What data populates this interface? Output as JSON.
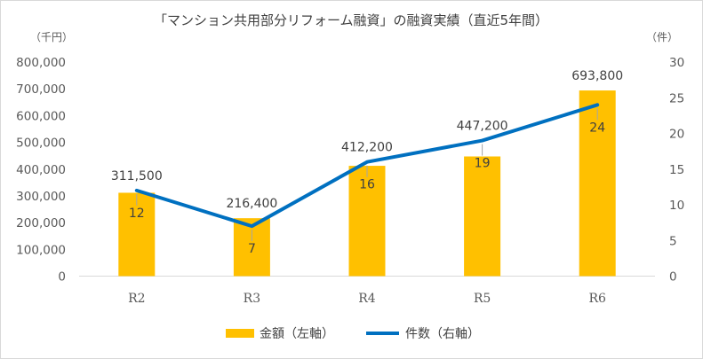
{
  "chart_data": {
    "type": "bar",
    "title": "「マンション共用部分リフォーム融資」の融資実績（直近5年間）",
    "left_unit": "（千円）",
    "right_unit": "（件）",
    "categories": [
      "R2",
      "R3",
      "R4",
      "R5",
      "R6"
    ],
    "series": [
      {
        "name": "金額（左軸）",
        "type": "bar",
        "axis": "left",
        "color": "#FFC000",
        "values": [
          311500,
          216400,
          412200,
          447200,
          693800
        ],
        "labels": [
          "311,500",
          "216,400",
          "412,200",
          "447,200",
          "693,800"
        ]
      },
      {
        "name": "件数（右軸）",
        "type": "line",
        "axis": "right",
        "color": "#0070C0",
        "values": [
          12,
          7,
          16,
          19,
          24
        ],
        "labels": [
          "12",
          "7",
          "16",
          "19",
          "24"
        ]
      }
    ],
    "y_left": {
      "min": 0,
      "max": 800000,
      "ticks": [
        "0",
        "100,000",
        "200,000",
        "300,000",
        "400,000",
        "500,000",
        "600,000",
        "700,000",
        "800,000"
      ]
    },
    "y_right": {
      "min": 0,
      "max": 30,
      "ticks": [
        "0",
        "5",
        "10",
        "15",
        "20",
        "25",
        "30"
      ]
    },
    "grid": false,
    "legend": "bottom"
  }
}
